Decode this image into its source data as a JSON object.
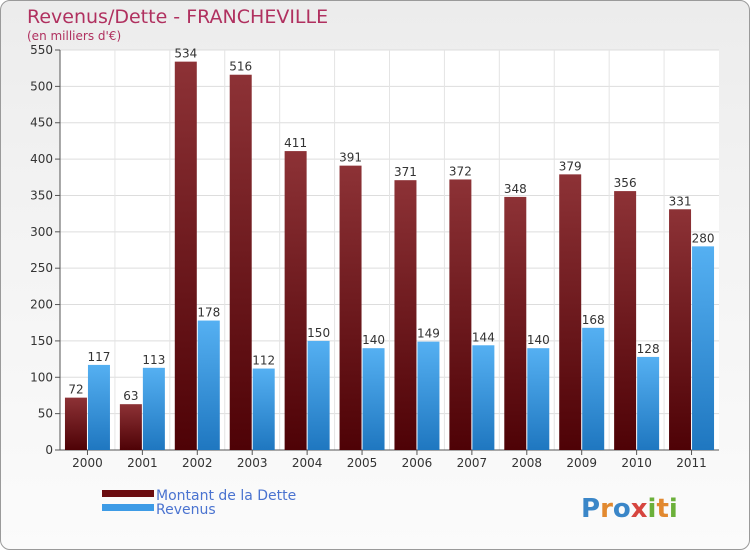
{
  "chart_data": {
    "type": "bar",
    "title": "Revenus/Dette - FRANCHEVILLE",
    "subtitle": "(en milliers d'€)",
    "xlabel": "",
    "ylabel": "",
    "ylim": [
      0,
      550
    ],
    "yticks": [
      0,
      50,
      100,
      150,
      200,
      250,
      300,
      350,
      400,
      450,
      500,
      550
    ],
    "grid": true,
    "categories": [
      "2000",
      "2001",
      "2002",
      "2003",
      "2004",
      "2005",
      "2006",
      "2007",
      "2008",
      "2009",
      "2010",
      "2011"
    ],
    "series": [
      {
        "name": "Montant de la Dette",
        "color": "#7a1f24",
        "values": [
          72,
          63,
          534,
          516,
          411,
          391,
          371,
          372,
          348,
          379,
          356,
          331
        ]
      },
      {
        "name": "Revenus",
        "color": "#3d9be6",
        "values": [
          117,
          113,
          178,
          112,
          150,
          140,
          149,
          144,
          140,
          168,
          128,
          280
        ]
      }
    ],
    "legend_position": "bottom-left"
  },
  "logo": {
    "text": "Proxiti",
    "letters": [
      "P",
      "r",
      "o",
      "x",
      "i",
      "t",
      "i"
    ]
  }
}
